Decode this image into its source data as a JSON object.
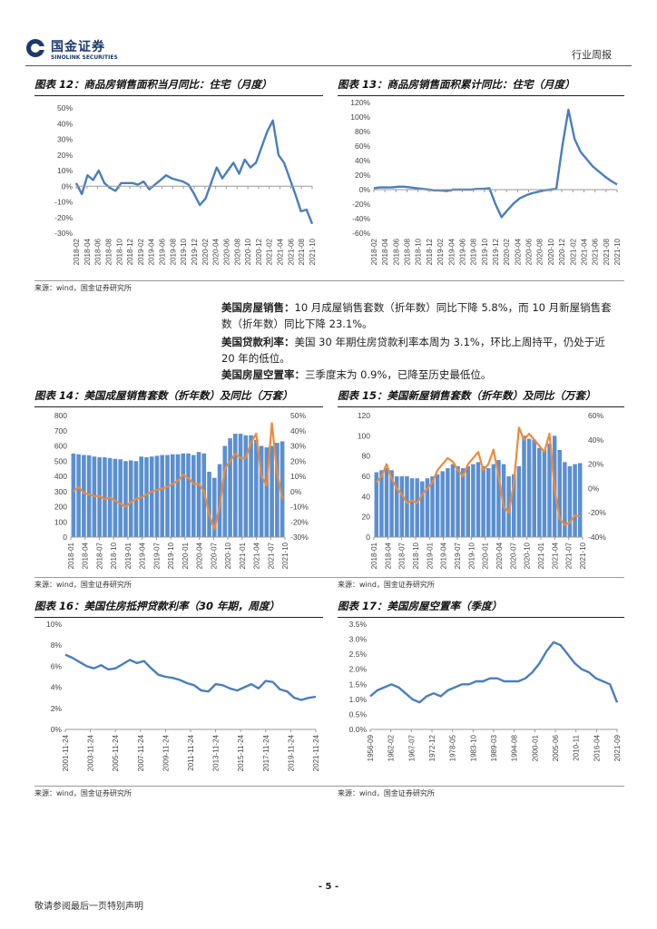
{
  "header": {
    "logo_cn": "国金证券",
    "logo_en": "SINOLINK SECURITIES",
    "report_type": "行业周报"
  },
  "figures": {
    "fig12": {
      "title": "图表 12：商品房销售面积当月同比：住宅（月度）",
      "source": "来源：wind，国金证券研究所"
    },
    "fig13": {
      "title": "图表 13：商品房销售面积累计同比：住宅（月度）"
    },
    "fig14": {
      "title": "图表 14：美国成屋销售套数（折年数）及同比（万套）",
      "source": "来源：wind，国金证券研究所"
    },
    "fig15": {
      "title": "图表 15：美国新屋销售套数（折年数）及同比（万套）",
      "source": "来源：wind，国金证券研究所"
    },
    "fig16": {
      "title": "图表 16：美国住房抵押贷款利率（30 年期，周度）",
      "source": "来源：wind，国金证券研究所"
    },
    "fig17": {
      "title": "图表 17：美国房屋空置率（季度）",
      "source": "来源：wind，国金证券研究所"
    }
  },
  "paragraphs": [
    {
      "label": "美国房屋销售：",
      "text": "10 月成屋销售套数（折年数）同比下降 5.8%，而 10 月新屋销售套数（折年数）同比下降 23.1%。"
    },
    {
      "label": "美国贷款利率：",
      "text": "美国 30 年期住房贷款利率本周为 3.1%，环比上周持平，仍处于近 20 年的低位。"
    },
    {
      "label": "美国房屋空置率：",
      "text": "三季度末为 0.9%，已降至历史最低位。"
    }
  ],
  "footer": {
    "page": "- 5 -",
    "note": "敬请参阅最后一页特别声明"
  },
  "colors": {
    "bar": "#5b8fd0",
    "line_orange": "#ed8a3c",
    "line_blue": "#4a7ebb"
  },
  "chart_data": [
    {
      "id": "fig12",
      "type": "line",
      "title": "商品房销售面积当月同比：住宅（月度）",
      "ylim": [
        -0.3,
        0.5
      ],
      "yticks": [
        "50%",
        "40%",
        "30%",
        "20%",
        "10%",
        "0%",
        "-10%",
        "-20%",
        "-30%"
      ],
      "xticks": [
        "2018-02",
        "2018-04",
        "2018-06",
        "2018-08",
        "2018-10",
        "2018-12",
        "2019-02",
        "2019-04",
        "2019-06",
        "2019-08",
        "2019-10",
        "2019-12",
        "2020-02",
        "2020-04",
        "2020-06",
        "2020-08",
        "2020-10",
        "2020-12",
        "2021-02",
        "2021-04",
        "2021-06",
        "2021-08",
        "2021-10"
      ],
      "series": [
        {
          "name": "当月同比",
          "values": [
            0.02,
            -0.05,
            0.07,
            0.04,
            0.1,
            0.02,
            -0.01,
            -0.03,
            0.02,
            0.02,
            0.02,
            0.01,
            0.03,
            -0.02,
            0.01,
            0.04,
            0.07,
            0.05,
            0.04,
            0.03,
            0.01,
            -0.05,
            -0.12,
            -0.08,
            0.02,
            0.12,
            0.05,
            0.1,
            0.15,
            0.08,
            0.17,
            0.12,
            0.15,
            0.25,
            0.35,
            0.42,
            0.2,
            0.15,
            0.05,
            -0.05,
            -0.16,
            -0.15,
            -0.24
          ]
        }
      ]
    },
    {
      "id": "fig13",
      "type": "line",
      "title": "商品房销售面积累计同比：住宅（月度）",
      "ylim": [
        -0.6,
        1.2
      ],
      "yticks": [
        "120%",
        "100%",
        "80%",
        "60%",
        "40%",
        "20%",
        "0%",
        "-20%",
        "-40%",
        "-60%"
      ],
      "xticks": [
        "2018-02",
        "2018-04",
        "2018-06",
        "2018-08",
        "2018-10",
        "2018-12",
        "2019-02",
        "2019-04",
        "2019-06",
        "2019-08",
        "2019-10",
        "2019-12",
        "2020-02",
        "2020-04",
        "2020-06",
        "2020-08",
        "2020-10",
        "2020-12",
        "2021-02",
        "2021-04",
        "2021-06",
        "2021-08",
        "2021-10"
      ],
      "series": [
        {
          "name": "累计同比",
          "values": [
            0.02,
            0.03,
            0.03,
            0.03,
            0.04,
            0.04,
            0.03,
            0.02,
            0.01,
            0.0,
            -0.01,
            -0.01,
            -0.02,
            0.0,
            0.0,
            0.0,
            0.0,
            0.01,
            0.01,
            0.02,
            -0.2,
            -0.38,
            -0.28,
            -0.19,
            -0.12,
            -0.08,
            -0.05,
            -0.03,
            -0.01,
            0.0,
            0.01,
            0.6,
            1.1,
            0.7,
            0.52,
            0.42,
            0.32,
            0.25,
            0.18,
            0.12,
            0.07
          ]
        }
      ]
    },
    {
      "id": "fig14",
      "type": "bar",
      "title": "美国成屋销售套数（折年数）及同比（万套）",
      "ylim": [
        0,
        800
      ],
      "y2lim": [
        -0.3,
        0.5
      ],
      "yticks": [
        "800",
        "700",
        "600",
        "500",
        "400",
        "300",
        "200",
        "100",
        "0"
      ],
      "y2ticks": [
        "50%",
        "40%",
        "30%",
        "20%",
        "10%",
        "0%",
        "-10%",
        "-20%",
        "-30%"
      ],
      "xticks": [
        "2018-01",
        "2018-04",
        "2018-07",
        "2018-10",
        "2019-01",
        "2019-04",
        "2019-07",
        "2019-10",
        "2020-01",
        "2020-04",
        "2020-07",
        "2020-10",
        "2021-01",
        "2021-04",
        "2021-07",
        "2021-10"
      ],
      "series": [
        {
          "name": "成屋销售套数",
          "values": [
            550,
            545,
            540,
            538,
            530,
            525,
            525,
            520,
            515,
            512,
            500,
            505,
            500,
            530,
            525,
            530,
            535,
            540,
            540,
            545,
            545,
            550,
            550,
            540,
            560,
            550,
            430,
            390,
            480,
            600,
            650,
            680,
            680,
            670,
            670,
            640,
            600,
            590,
            600,
            620,
            630
          ]
        },
        {
          "name": "同比",
          "values": [
            0.0,
            0.03,
            -0.01,
            -0.02,
            -0.03,
            -0.03,
            -0.05,
            -0.04,
            -0.06,
            -0.08,
            -0.1,
            -0.07,
            -0.05,
            -0.04,
            -0.02,
            0.0,
            0.01,
            0.02,
            0.03,
            0.05,
            0.07,
            0.11,
            0.09,
            0.05,
            0.05,
            0.0,
            -0.15,
            -0.25,
            -0.1,
            0.15,
            0.2,
            0.25,
            0.22,
            0.22,
            0.32,
            0.38,
            0.1,
            0.04,
            0.45,
            0.12,
            -0.05
          ]
        }
      ]
    },
    {
      "id": "fig15",
      "type": "bar",
      "title": "美国新屋销售套数（折年数）及同比（万套）",
      "ylim": [
        0,
        120
      ],
      "y2lim": [
        -0.4,
        0.6
      ],
      "yticks": [
        "120",
        "100",
        "80",
        "60",
        "40",
        "20",
        "0"
      ],
      "y2ticks": [
        "60%",
        "40%",
        "20%",
        "0%",
        "-20%",
        "-40%"
      ],
      "xticks": [
        "2018-01",
        "2018-04",
        "2018-07",
        "2018-10",
        "2019-01",
        "2019-04",
        "2019-07",
        "2019-10",
        "2020-01",
        "2020-04",
        "2020-07",
        "2020-10",
        "2021-01",
        "2021-04",
        "2021-07",
        "2021-10"
      ],
      "series": [
        {
          "name": "新屋销售套数",
          "values": [
            64,
            66,
            68,
            66,
            60,
            60,
            60,
            58,
            58,
            55,
            58,
            60,
            62,
            65,
            68,
            72,
            70,
            68,
            70,
            72,
            74,
            70,
            68,
            72,
            76,
            72,
            60,
            62,
            70,
            100,
            97,
            96,
            88,
            86,
            92,
            100,
            86,
            74,
            70,
            72,
            73
          ]
        },
        {
          "name": "同比",
          "values": [
            0.05,
            0.1,
            0.2,
            0.08,
            0.0,
            -0.05,
            -0.12,
            -0.1,
            -0.12,
            -0.05,
            0.0,
            0.05,
            0.15,
            0.2,
            0.25,
            0.22,
            0.15,
            0.1,
            0.2,
            0.25,
            0.3,
            0.15,
            0.2,
            0.32,
            0.1,
            -0.15,
            -0.2,
            0.05,
            0.5,
            0.4,
            0.45,
            0.4,
            0.35,
            0.3,
            0.45,
            0.0,
            -0.25,
            -0.3,
            -0.28,
            -0.22,
            -0.23
          ]
        }
      ]
    },
    {
      "id": "fig16",
      "type": "line",
      "title": "美国住房抵押贷款利率（30 年期，周度）",
      "ylim": [
        0,
        0.1
      ],
      "yticks": [
        "10%",
        "8%",
        "6%",
        "4%",
        "2%",
        "0%"
      ],
      "xticks": [
        "2001-11-24",
        "2003-11-24",
        "2005-11-24",
        "2007-11-24",
        "2009-11-24",
        "2011-11-24",
        "2013-11-24",
        "2015-11-24",
        "2017-11-24",
        "2019-11-24",
        "2021-11-24"
      ],
      "series": [
        {
          "name": "30年期抵押贷款利率",
          "values": [
            0.071,
            0.068,
            0.064,
            0.06,
            0.058,
            0.061,
            0.057,
            0.058,
            0.062,
            0.066,
            0.063,
            0.065,
            0.058,
            0.052,
            0.05,
            0.049,
            0.047,
            0.044,
            0.042,
            0.037,
            0.036,
            0.043,
            0.042,
            0.039,
            0.037,
            0.04,
            0.043,
            0.039,
            0.046,
            0.045,
            0.038,
            0.036,
            0.03,
            0.028,
            0.03,
            0.031
          ]
        }
      ]
    },
    {
      "id": "fig17",
      "type": "line",
      "title": "美国房屋空置率（季度）",
      "ylim": [
        0,
        0.035
      ],
      "yticks": [
        "3.5%",
        "3.0%",
        "2.5%",
        "2.0%",
        "1.5%",
        "1.0%",
        "0.5%",
        "0.0%"
      ],
      "xticks": [
        "1956-09",
        "1962-02",
        "1967-07",
        "1972-12",
        "1978-05",
        "1983-10",
        "1989-03",
        "1994-08",
        "2000-01",
        "2005-06",
        "2010-11",
        "2016-04",
        "2021-09"
      ],
      "series": [
        {
          "name": "房屋空置率",
          "values": [
            0.011,
            0.013,
            0.014,
            0.015,
            0.014,
            0.012,
            0.01,
            0.009,
            0.011,
            0.012,
            0.011,
            0.013,
            0.014,
            0.015,
            0.015,
            0.016,
            0.016,
            0.017,
            0.017,
            0.016,
            0.016,
            0.016,
            0.017,
            0.019,
            0.022,
            0.026,
            0.029,
            0.028,
            0.025,
            0.022,
            0.02,
            0.019,
            0.017,
            0.016,
            0.015,
            0.009
          ]
        }
      ]
    }
  ]
}
